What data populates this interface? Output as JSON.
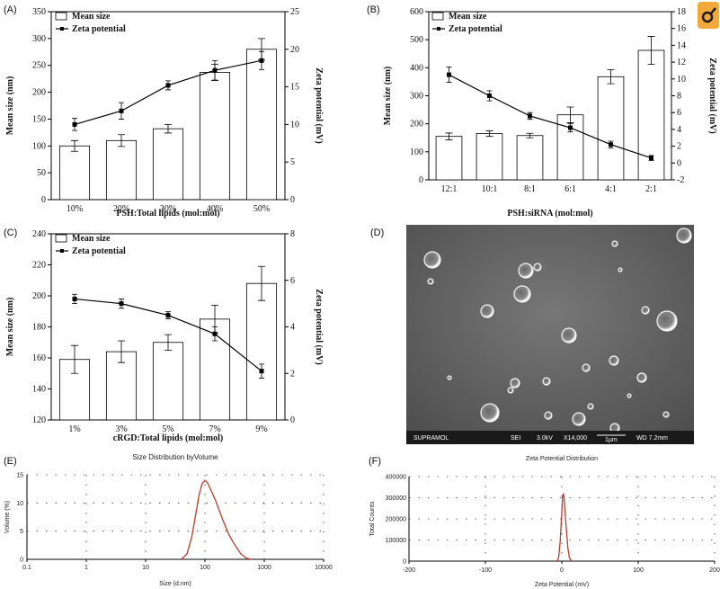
{
  "panels": {
    "A": "(A)",
    "B": "(B)",
    "C": "(C)",
    "D": "(D)",
    "E": "(E)",
    "F": "(F)"
  },
  "colors": {
    "axis": "#000000",
    "bar_fill": "#ffffff",
    "zeta_line": "#000000",
    "dist_curve": "#c0392b",
    "sem_bg": "#5a5a5a",
    "badge_bg": "#f1a93b"
  },
  "badge": {
    "icon": "search-magnifier-icon"
  },
  "chart_data": [
    {
      "id": "A",
      "type": "bar",
      "categories": [
        "10%",
        "20%",
        "30%",
        "40%",
        "50%"
      ],
      "series": [
        {
          "name": "Mean size",
          "type": "bar",
          "axis": "left",
          "values": [
            100,
            110,
            132,
            237,
            280
          ],
          "errors": [
            10,
            11,
            8,
            15,
            20
          ]
        },
        {
          "name": "Zeta potential",
          "type": "line",
          "axis": "right",
          "values": [
            10,
            11.8,
            15.2,
            17.2,
            18.5
          ],
          "errors": [
            0.8,
            1.1,
            0.6,
            1.3,
            1.2
          ]
        }
      ],
      "xlabel": "PSH:Total lipids (mol:mol)",
      "ylabel": "Mean size (nm)",
      "y2label": "Zeta potential (mV)",
      "ylim": [
        0,
        350
      ],
      "y2lim": [
        0,
        25
      ],
      "yticks": [
        "0",
        "50",
        "100",
        "150",
        "200",
        "250",
        "300",
        "350"
      ],
      "y2ticks": [
        "0",
        "5",
        "10",
        "15",
        "20",
        "25"
      ],
      "legend": "top-left"
    },
    {
      "id": "B",
      "type": "bar",
      "categories": [
        "12:1",
        "10:1",
        "8:1",
        "6:1",
        "4:1",
        "2:1"
      ],
      "series": [
        {
          "name": "Mean size",
          "type": "bar",
          "axis": "left",
          "values": [
            155,
            165,
            158,
            232,
            368,
            462
          ],
          "errors": [
            12,
            10,
            8,
            28,
            25,
            50
          ]
        },
        {
          "name": "Zeta potential",
          "type": "line",
          "axis": "right",
          "values": [
            10.5,
            8,
            5.6,
            4.2,
            2.2,
            0.6
          ],
          "errors": [
            0.9,
            0.6,
            0.4,
            0.5,
            0.4,
            0.3
          ]
        }
      ],
      "xlabel": "PSH:siRNA (mol:mol)",
      "ylabel": "Mean size (nm)",
      "y2label": "Zeta potential (mV)",
      "ylim": [
        0,
        600
      ],
      "y2lim": [
        -2,
        18
      ],
      "yticks": [
        "0",
        "100",
        "200",
        "300",
        "400",
        "500",
        "600"
      ],
      "y2ticks": [
        "-2",
        "0",
        "2",
        "4",
        "6",
        "8",
        "10",
        "12",
        "14",
        "16",
        "18"
      ],
      "legend": "top-left"
    },
    {
      "id": "C",
      "type": "bar",
      "categories": [
        "1%",
        "3%",
        "5%",
        "7%",
        "9%"
      ],
      "series": [
        {
          "name": "Mean size",
          "type": "bar",
          "axis": "left",
          "values": [
            159,
            164,
            170,
            185,
            208
          ],
          "errors": [
            9,
            7,
            5,
            9,
            11
          ]
        },
        {
          "name": "Zeta potential",
          "type": "line",
          "axis": "right",
          "values": [
            5.2,
            5,
            4.5,
            3.7,
            2.1
          ],
          "errors": [
            0.2,
            0.2,
            0.15,
            0.3,
            0.3
          ]
        }
      ],
      "xlabel": "cRGD:Total lipids (mol:mol)",
      "ylabel": "Mean size (nm)",
      "y2label": "Zeta potential (mV)",
      "ylim": [
        120,
        240
      ],
      "y2lim": [
        0,
        8
      ],
      "yticks": [
        "120",
        "140",
        "160",
        "180",
        "200",
        "220",
        "240"
      ],
      "y2ticks": [
        "0",
        "2",
        "4",
        "6",
        "8"
      ],
      "legend": "top-left"
    },
    {
      "id": "E",
      "type": "line",
      "title": "Size Distribution byVolume",
      "xscale": "log",
      "xlim": [
        0.1,
        10000
      ],
      "ylim": [
        0,
        15
      ],
      "xticks": [
        "0.1",
        "1",
        "10",
        "100",
        "1000",
        "10000"
      ],
      "yticks": [
        "0",
        "5",
        "10",
        "15"
      ],
      "xlabel": "Size (d.nm)",
      "ylabel": "Volume (%)",
      "series": [
        {
          "x": [
            40,
            50,
            60,
            70,
            80,
            90,
            100,
            110,
            130,
            150,
            200,
            250,
            300,
            400,
            500,
            600
          ],
          "y": [
            0,
            1,
            4,
            8,
            11.5,
            13.5,
            14,
            13.6,
            12,
            10.5,
            7,
            4.5,
            3,
            1,
            0.2,
            0
          ]
        }
      ]
    },
    {
      "id": "F",
      "type": "line",
      "title": "Zeta Potential Distribution",
      "xlim": [
        -200,
        200
      ],
      "ylim": [
        0,
        400000
      ],
      "xticks": [
        "-200",
        "-100",
        "0",
        "100",
        "200"
      ],
      "yticks": [
        "0",
        "100000",
        "200000",
        "300000",
        "400000"
      ],
      "xlabel": "Zeta Potential (mV)",
      "ylabel": "Total Counts",
      "series": [
        {
          "x": [
            -6,
            -4,
            -2,
            0,
            1,
            2,
            3,
            4,
            6,
            8,
            10,
            13
          ],
          "y": [
            0,
            20000,
            100000,
            230000,
            300000,
            320000,
            300000,
            240000,
            150000,
            60000,
            15000,
            0
          ]
        }
      ]
    }
  ],
  "sem": {
    "lab": "SUPRAMOL",
    "mode": "SEI",
    "voltage": "3.0kV",
    "mag": "X14,000",
    "scale": "1µm",
    "wd": "WD 7.2mm"
  }
}
